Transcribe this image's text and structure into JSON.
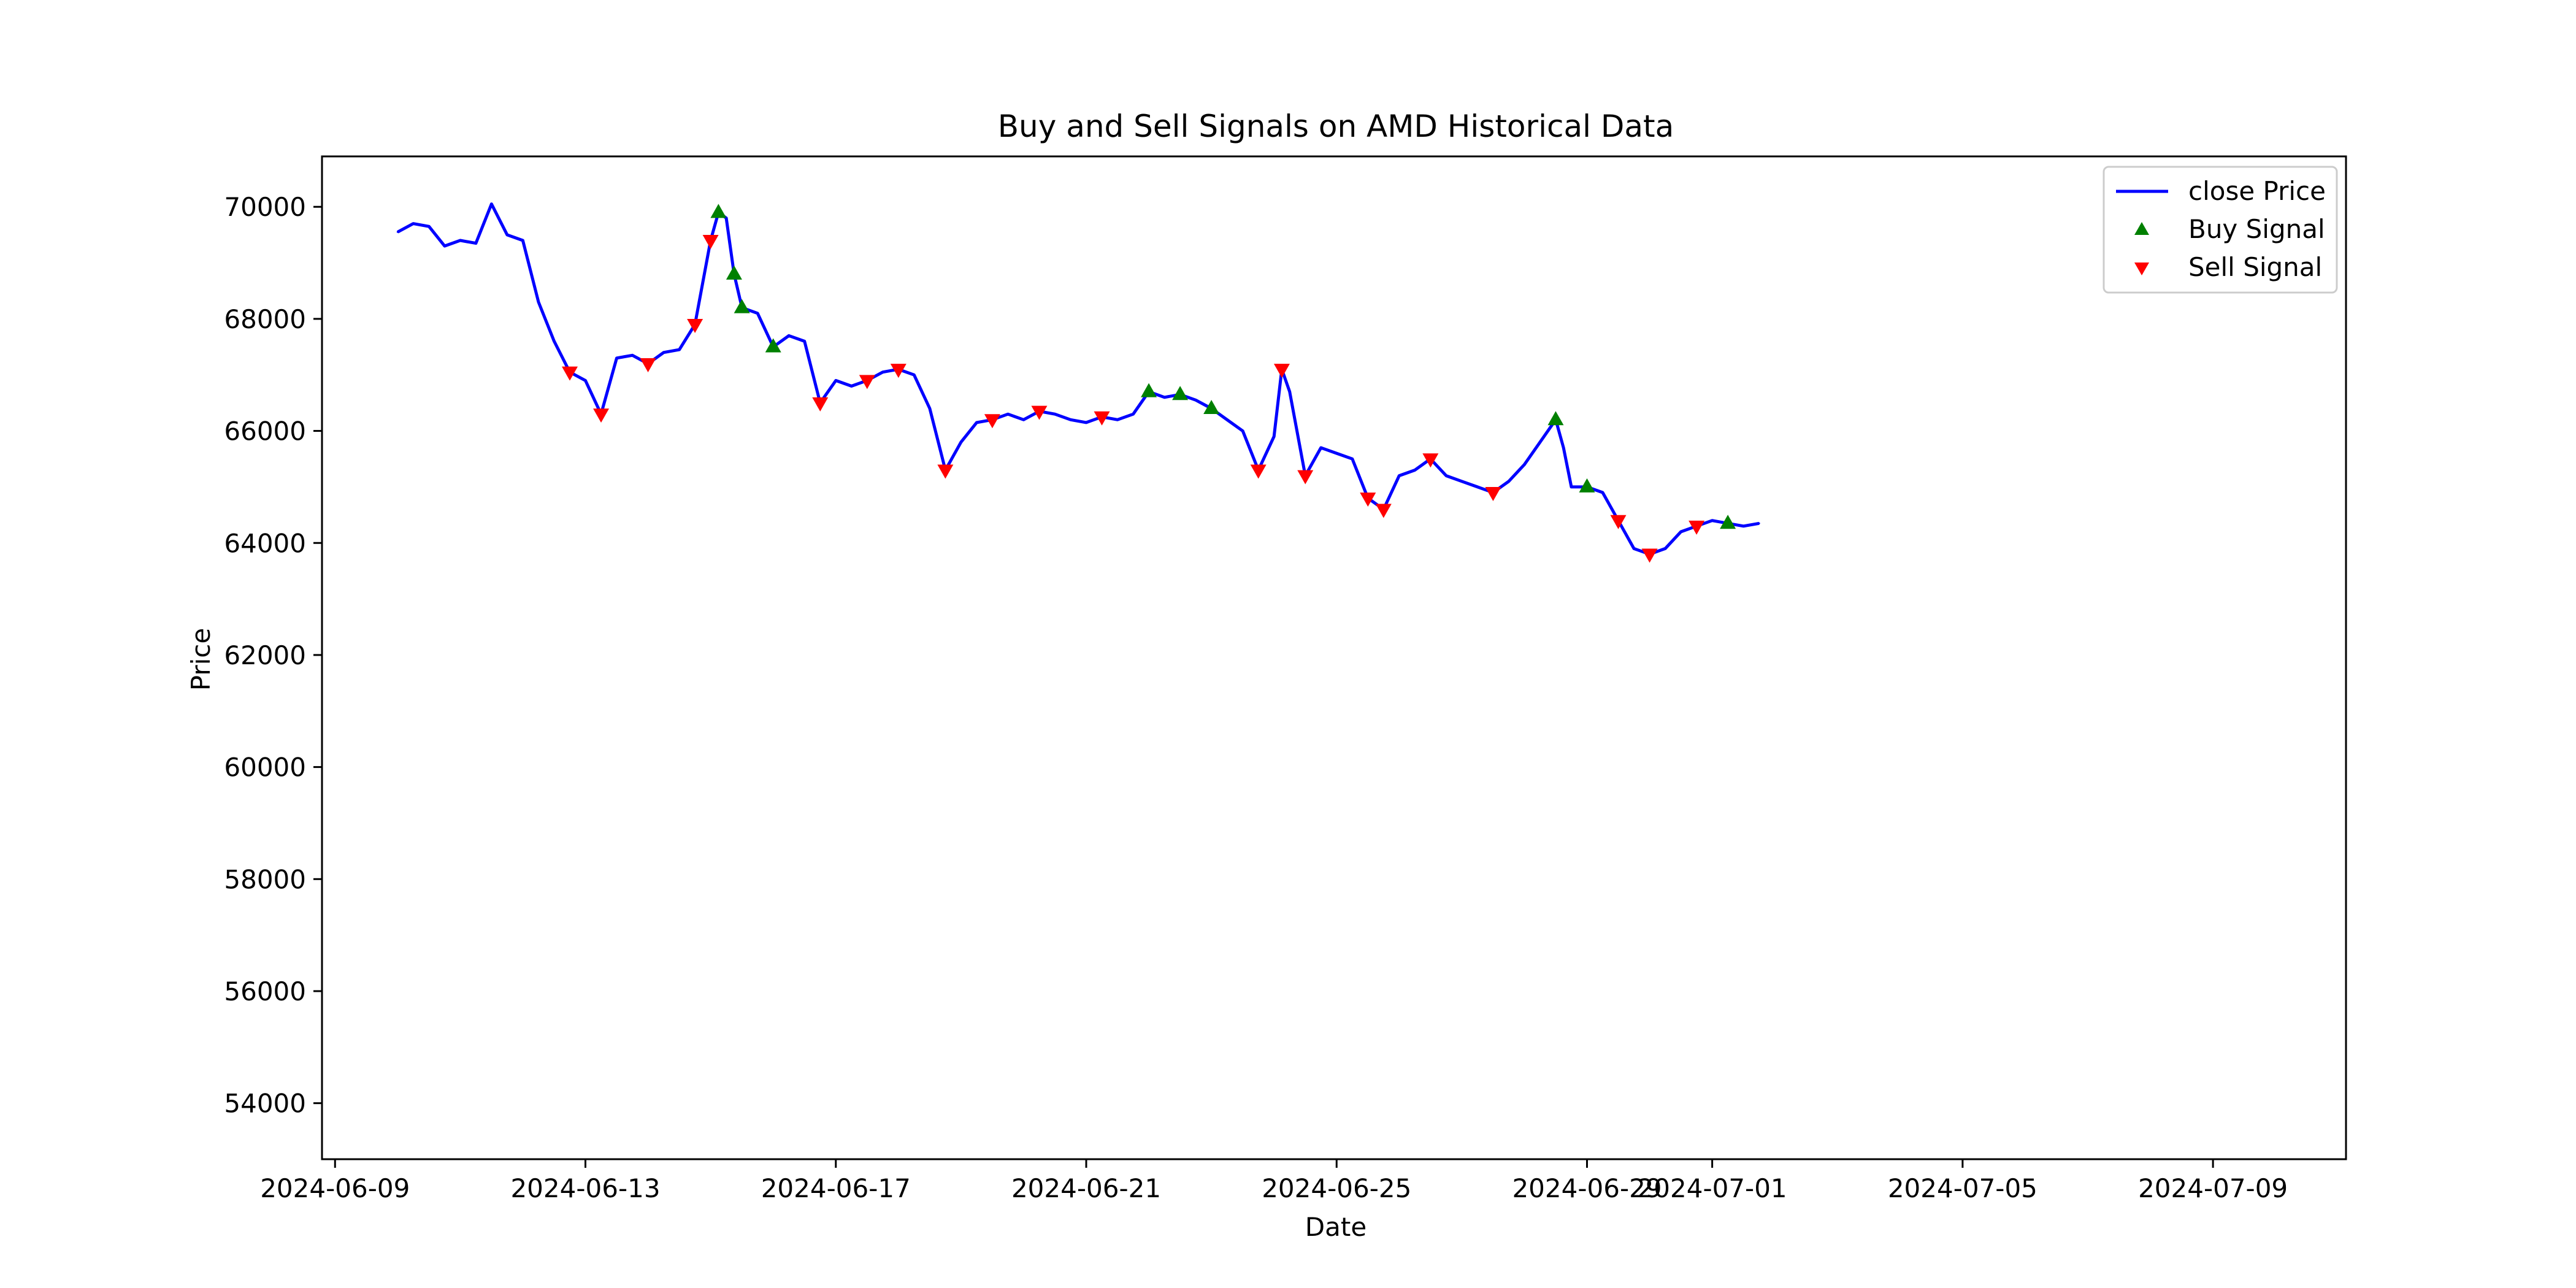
{
  "chart_data": {
    "type": "line",
    "title": "Buy and Sell Signals on AMD Historical Data",
    "xlabel": "Date",
    "ylabel": "Price",
    "xlim": [
      "2024-06-08 19:00",
      "2024-07-11 03:00"
    ],
    "ylim": [
      53000,
      70900
    ],
    "x_ticks": [
      "2024-06-09",
      "2024-06-13",
      "2024-06-17",
      "2024-06-21",
      "2024-06-25",
      "2024-06-29",
      "2024-07-01",
      "2024-07-05",
      "2024-07-09"
    ],
    "y_ticks": [
      54000,
      56000,
      58000,
      60000,
      62000,
      64000,
      66000,
      68000,
      70000
    ],
    "grid": false,
    "legend_position": "top-right",
    "colors": {
      "line": "#0000ff",
      "buy": "#008000",
      "sell": "#ff0000"
    },
    "series": [
      {
        "name": "close Price",
        "style": "line",
        "points": [
          [
            "2024-06-10 00:00",
            69550
          ],
          [
            "2024-06-10 06:00",
            69700
          ],
          [
            "2024-06-10 12:00",
            69650
          ],
          [
            "2024-06-10 18:00",
            69300
          ],
          [
            "2024-06-11 00:00",
            69400
          ],
          [
            "2024-06-11 06:00",
            69350
          ],
          [
            "2024-06-11 12:00",
            70050
          ],
          [
            "2024-06-11 18:00",
            69500
          ],
          [
            "2024-06-12 00:00",
            69400
          ],
          [
            "2024-06-12 06:00",
            68300
          ],
          [
            "2024-06-12 12:00",
            67600
          ],
          [
            "2024-06-12 18:00",
            67050
          ],
          [
            "2024-06-13 00:00",
            66900
          ],
          [
            "2024-06-13 06:00",
            66300
          ],
          [
            "2024-06-13 12:00",
            67300
          ],
          [
            "2024-06-13 18:00",
            67350
          ],
          [
            "2024-06-14 00:00",
            67200
          ],
          [
            "2024-06-14 06:00",
            67400
          ],
          [
            "2024-06-14 12:00",
            67450
          ],
          [
            "2024-06-14 18:00",
            67900
          ],
          [
            "2024-06-15 00:00",
            69400
          ],
          [
            "2024-06-15 03:00",
            69900
          ],
          [
            "2024-06-15 06:00",
            69800
          ],
          [
            "2024-06-15 09:00",
            68800
          ],
          [
            "2024-06-15 12:00",
            68200
          ],
          [
            "2024-06-15 18:00",
            68100
          ],
          [
            "2024-06-16 00:00",
            67500
          ],
          [
            "2024-06-16 06:00",
            67700
          ],
          [
            "2024-06-16 12:00",
            67600
          ],
          [
            "2024-06-16 18:00",
            66500
          ],
          [
            "2024-06-17 00:00",
            66900
          ],
          [
            "2024-06-17 06:00",
            66800
          ],
          [
            "2024-06-17 12:00",
            66900
          ],
          [
            "2024-06-17 18:00",
            67050
          ],
          [
            "2024-06-18 00:00",
            67100
          ],
          [
            "2024-06-18 06:00",
            67000
          ],
          [
            "2024-06-18 12:00",
            66400
          ],
          [
            "2024-06-18 18:00",
            65300
          ],
          [
            "2024-06-19 00:00",
            65800
          ],
          [
            "2024-06-19 06:00",
            66150
          ],
          [
            "2024-06-19 12:00",
            66200
          ],
          [
            "2024-06-19 18:00",
            66300
          ],
          [
            "2024-06-20 00:00",
            66200
          ],
          [
            "2024-06-20 06:00",
            66350
          ],
          [
            "2024-06-20 12:00",
            66300
          ],
          [
            "2024-06-20 18:00",
            66200
          ],
          [
            "2024-06-21 00:00",
            66150
          ],
          [
            "2024-06-21 06:00",
            66250
          ],
          [
            "2024-06-21 12:00",
            66200
          ],
          [
            "2024-06-21 18:00",
            66300
          ],
          [
            "2024-06-22 00:00",
            66700
          ],
          [
            "2024-06-22 06:00",
            66600
          ],
          [
            "2024-06-22 12:00",
            66650
          ],
          [
            "2024-06-22 18:00",
            66550
          ],
          [
            "2024-06-23 00:00",
            66400
          ],
          [
            "2024-06-23 06:00",
            66200
          ],
          [
            "2024-06-23 12:00",
            66000
          ],
          [
            "2024-06-23 18:00",
            65300
          ],
          [
            "2024-06-24 00:00",
            65900
          ],
          [
            "2024-06-24 03:00",
            67100
          ],
          [
            "2024-06-24 06:00",
            66700
          ],
          [
            "2024-06-24 12:00",
            65200
          ],
          [
            "2024-06-24 18:00",
            65700
          ],
          [
            "2024-06-25 00:00",
            65600
          ],
          [
            "2024-06-25 06:00",
            65500
          ],
          [
            "2024-06-25 12:00",
            64800
          ],
          [
            "2024-06-25 18:00",
            64600
          ],
          [
            "2024-06-26 00:00",
            65200
          ],
          [
            "2024-06-26 06:00",
            65300
          ],
          [
            "2024-06-26 12:00",
            65500
          ],
          [
            "2024-06-26 18:00",
            65200
          ],
          [
            "2024-06-27 00:00",
            65100
          ],
          [
            "2024-06-27 06:00",
            65000
          ],
          [
            "2024-06-27 12:00",
            64900
          ],
          [
            "2024-06-27 18:00",
            65100
          ],
          [
            "2024-06-28 00:00",
            65400
          ],
          [
            "2024-06-28 06:00",
            65800
          ],
          [
            "2024-06-28 12:00",
            66200
          ],
          [
            "2024-06-28 15:00",
            65700
          ],
          [
            "2024-06-28 18:00",
            65000
          ],
          [
            "2024-06-29 00:00",
            65000
          ],
          [
            "2024-06-29 06:00",
            64900
          ],
          [
            "2024-06-29 12:00",
            64400
          ],
          [
            "2024-06-29 18:00",
            63900
          ],
          [
            "2024-06-30 00:00",
            63800
          ],
          [
            "2024-06-30 06:00",
            63900
          ],
          [
            "2024-06-30 12:00",
            64200
          ],
          [
            "2024-06-30 18:00",
            64300
          ],
          [
            "2024-07-01 00:00",
            64400
          ],
          [
            "2024-07-01 06:00",
            64350
          ],
          [
            "2024-07-01 12:00",
            64300
          ],
          [
            "2024-07-01 18:00",
            64350
          ]
        ]
      },
      {
        "name": "Buy Signal",
        "style": "marker-up",
        "points": [
          [
            "2024-06-15 03:00",
            69900
          ],
          [
            "2024-06-15 09:00",
            68800
          ],
          [
            "2024-06-15 12:00",
            68200
          ],
          [
            "2024-06-16 00:00",
            67500
          ],
          [
            "2024-06-22 00:00",
            66700
          ],
          [
            "2024-06-22 12:00",
            66650
          ],
          [
            "2024-06-23 00:00",
            66400
          ],
          [
            "2024-06-28 12:00",
            66200
          ],
          [
            "2024-06-29 00:00",
            65000
          ],
          [
            "2024-07-01 06:00",
            64350
          ]
        ]
      },
      {
        "name": "Sell Signal",
        "style": "marker-down",
        "points": [
          [
            "2024-06-12 18:00",
            67050
          ],
          [
            "2024-06-13 06:00",
            66300
          ],
          [
            "2024-06-14 00:00",
            67200
          ],
          [
            "2024-06-14 18:00",
            67900
          ],
          [
            "2024-06-15 00:00",
            69400
          ],
          [
            "2024-06-16 18:00",
            66500
          ],
          [
            "2024-06-17 12:00",
            66900
          ],
          [
            "2024-06-18 00:00",
            67100
          ],
          [
            "2024-06-18 18:00",
            65300
          ],
          [
            "2024-06-19 12:00",
            66200
          ],
          [
            "2024-06-20 06:00",
            66350
          ],
          [
            "2024-06-21 06:00",
            66250
          ],
          [
            "2024-06-23 18:00",
            65300
          ],
          [
            "2024-06-24 03:00",
            67100
          ],
          [
            "2024-06-24 12:00",
            65200
          ],
          [
            "2024-06-25 12:00",
            64800
          ],
          [
            "2024-06-25 18:00",
            64600
          ],
          [
            "2024-06-26 12:00",
            65500
          ],
          [
            "2024-06-27 12:00",
            64900
          ],
          [
            "2024-06-29 12:00",
            64400
          ],
          [
            "2024-06-30 00:00",
            63800
          ],
          [
            "2024-06-30 18:00",
            64300
          ]
        ]
      }
    ]
  }
}
